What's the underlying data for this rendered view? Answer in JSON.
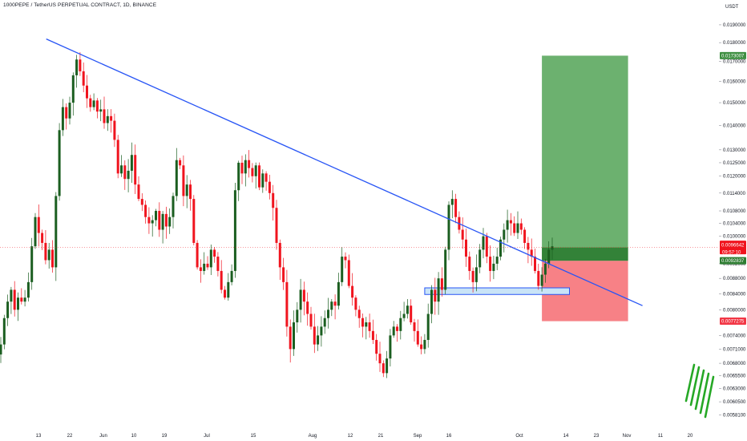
{
  "header": {
    "title": "1000PEPE / TetherUS PERPETUAL CONTRACT, 1D, BINANCE",
    "currency": "USDT"
  },
  "colors": {
    "up": "#1b5e20",
    "down": "#f0141e",
    "trendline": "#2855f5",
    "target_zone": "#4ca04f",
    "stop_zone": "#f77a80",
    "box": "#2855f5",
    "box_fill": "#c9e4f7",
    "current_price_line": "#f0141e"
  },
  "price_tags": {
    "target": "0.0173007",
    "last": "0.0096642",
    "countdown": "09:57:10",
    "entry": "0.0092837",
    "stop": "0.0077275"
  },
  "chart_data": {
    "type": "candlestick",
    "title": "1000PEPE / TetherUS PERPETUAL CONTRACT, 1D, BINANCE",
    "ylabel": "USDT",
    "yscale": "log",
    "ylim": [
      0.00575,
      0.0198
    ],
    "x_ticks": [
      "13",
      "22",
      "Jun",
      "10",
      "19",
      "Jul",
      "15",
      "Aug",
      "12",
      "21",
      "Sep",
      "16",
      "Oct",
      "14",
      "23",
      "Nov",
      "11",
      "20"
    ],
    "y_ticks": [
      "0.0190000",
      "0.0180000",
      "0.0170000",
      "0.0160000",
      "0.0150000",
      "0.0140000",
      "0.0130000",
      "0.0125000",
      "0.0120000",
      "0.0114000",
      "0.0108000",
      "0.0104000",
      "0.0100000",
      "0.0092000",
      "0.0088000",
      "0.0084000",
      "0.0080000",
      "0.0074000",
      "0.0071000",
      "0.0068000",
      "0.0065500",
      "0.0063000",
      "0.0060500",
      "0.0058100"
    ],
    "closes": [
      0.0072,
      0.0078,
      0.0082,
      0.0085,
      0.008,
      0.0083,
      0.0082,
      0.0083,
      0.0087,
      0.0097,
      0.0106,
      0.0101,
      0.0098,
      0.0093,
      0.0096,
      0.0091,
      0.0113,
      0.0138,
      0.0148,
      0.0143,
      0.015,
      0.0163,
      0.0171,
      0.0165,
      0.0158,
      0.0152,
      0.0148,
      0.0151,
      0.0146,
      0.0147,
      0.0141,
      0.0144,
      0.0142,
      0.0134,
      0.0121,
      0.0124,
      0.0119,
      0.0122,
      0.0128,
      0.0117,
      0.0112,
      0.011,
      0.0106,
      0.0104,
      0.0105,
      0.0108,
      0.0102,
      0.0107,
      0.0103,
      0.0106,
      0.0113,
      0.0126,
      0.0124,
      0.0113,
      0.0117,
      0.0112,
      0.0098,
      0.0091,
      0.009,
      0.0092,
      0.0091,
      0.0096,
      0.0094,
      0.009,
      0.0085,
      0.0083,
      0.0087,
      0.009,
      0.0115,
      0.0125,
      0.0121,
      0.0126,
      0.0123,
      0.012,
      0.0124,
      0.0116,
      0.0121,
      0.0118,
      0.0114,
      0.0109,
      0.0098,
      0.0091,
      0.0087,
      0.0076,
      0.0071,
      0.0077,
      0.008,
      0.0085,
      0.0082,
      0.0079,
      0.0076,
      0.0072,
      0.0074,
      0.0076,
      0.0078,
      0.008,
      0.0082,
      0.0081,
      0.0087,
      0.0094,
      0.0093,
      0.0086,
      0.0083,
      0.008,
      0.0078,
      0.0076,
      0.0077,
      0.0075,
      0.0073,
      0.007,
      0.0068,
      0.0066,
      0.0069,
      0.0074,
      0.0076,
      0.0075,
      0.0078,
      0.0079,
      0.0081,
      0.0077,
      0.0075,
      0.0072,
      0.0071,
      0.0073,
      0.0079,
      0.0085,
      0.0082,
      0.0088,
      0.0085,
      0.0096,
      0.011,
      0.0112,
      0.0106,
      0.0102,
      0.0099,
      0.0094,
      0.009,
      0.0087,
      0.0091,
      0.0096,
      0.01,
      0.0094,
      0.009,
      0.0092,
      0.0094,
      0.0099,
      0.0102,
      0.0105,
      0.0104,
      0.0101,
      0.0104,
      0.0102,
      0.0098,
      0.0096,
      0.0094,
      0.009,
      0.0086,
      0.0089,
      0.0092,
      0.0096,
      0.0097
    ],
    "trendline": {
      "from": {
        "bar": 9,
        "price": 0.0182
      },
      "to": {
        "bar": 162,
        "price": 0.0081
      }
    },
    "support_box": {
      "from_bar": 123,
      "to_bar": 165,
      "high": 0.00855,
      "low": 0.00838
    },
    "position": {
      "entry": 0.0092837,
      "target": 0.0173007,
      "stop": 0.0077275,
      "from_bar": 157,
      "to_bar": 182
    },
    "current_price": 0.0096642,
    "grid": false,
    "legend": "none"
  }
}
